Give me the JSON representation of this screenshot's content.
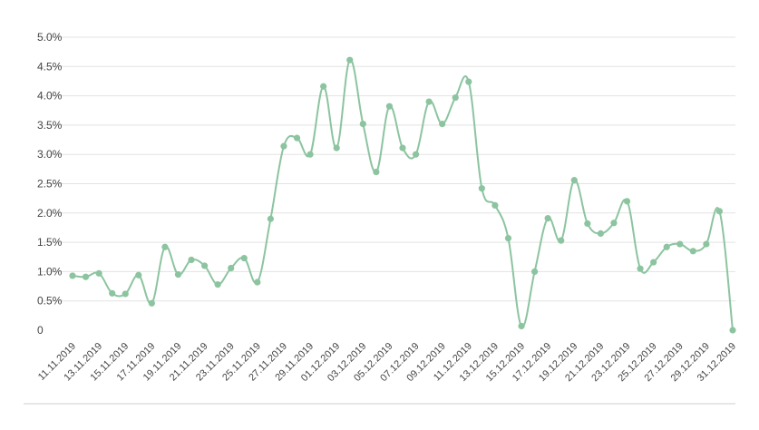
{
  "chart_data": {
    "type": "line",
    "title": "",
    "xlabel": "",
    "ylabel": "",
    "ylim": [
      0,
      5
    ],
    "yticks": [
      "0",
      "0.5%",
      "1.0%",
      "1.5%",
      "2.0%",
      "2.5%",
      "3.0%",
      "3.5%",
      "4.0%",
      "4.5%",
      "5.0%"
    ],
    "grid": true,
    "legend": "none",
    "color": "#8cc4a0",
    "x": [
      "11.11.2019",
      "12.11.2019",
      "13.11.2019",
      "14.11.2019",
      "15.11.2019",
      "16.11.2019",
      "17.11.2019",
      "18.11.2019",
      "19.11.2019",
      "20.11.2019",
      "21.11.2019",
      "22.11.2019",
      "23.11.2019",
      "24.11.2019",
      "25.11.2019",
      "26.11.2019",
      "27.11.2019",
      "28.11.2019",
      "29.11.2019",
      "30.11.2019",
      "01.12.2019",
      "02.12.2019",
      "03.12.2019",
      "04.12.2019",
      "05.12.2019",
      "06.12.2019",
      "07.12.2019",
      "08.12.2019",
      "09.12.2019",
      "10.12.2019",
      "11.12.2019",
      "12.12.2019",
      "13.12.2019",
      "14.12.2019",
      "15.12.2019",
      "16.12.2019",
      "17.12.2019",
      "18.12.2019",
      "19.12.2019",
      "20.12.2019",
      "21.12.2019",
      "22.12.2019",
      "23.12.2019",
      "24.12.2019",
      "25.12.2019",
      "26.12.2019",
      "27.12.2019",
      "28.12.2019",
      "29.12.2019",
      "30.12.2019",
      "31.12.2019"
    ],
    "xticklabels": [
      "11.11.2019",
      "13.11.2019",
      "15.11.2019",
      "17.11.2019",
      "19.11.2019",
      "21.11.2019",
      "23.11.2019",
      "25.11.2019",
      "27.11.2019",
      "29.11.2019",
      "01.12.2019",
      "03.12.2019",
      "05.12.2019",
      "07.12.2019",
      "09.12.2019",
      "11.12.2019",
      "13.12.2019",
      "15.12.2019",
      "17.12.2019",
      "19.12.2019",
      "21.12.2019",
      "23.12.2019",
      "25.12.2019",
      "27.12.2019",
      "29.12.2019",
      "31.12.2019"
    ],
    "series": [
      {
        "values": [
          0.93,
          0.91,
          0.97,
          0.63,
          0.62,
          0.94,
          0.46,
          1.42,
          0.95,
          1.2,
          1.1,
          0.78,
          1.06,
          1.23,
          0.82,
          1.9,
          3.14,
          3.28,
          3.0,
          4.16,
          3.11,
          4.61,
          3.52,
          2.7,
          3.82,
          3.11,
          3.0,
          3.9,
          3.52,
          3.97,
          4.24,
          2.42,
          2.13,
          1.57,
          0.07,
          1.0,
          1.91,
          1.53,
          2.56,
          1.82,
          1.65,
          1.83,
          2.2,
          1.05,
          1.16,
          1.42,
          1.47,
          1.35,
          1.47,
          2.03,
          0.0
        ]
      }
    ]
  }
}
